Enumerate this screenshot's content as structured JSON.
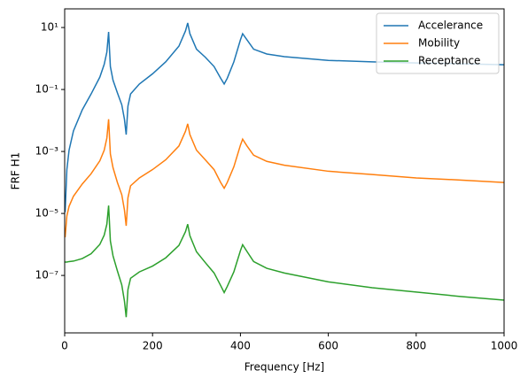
{
  "chart_data": {
    "type": "line",
    "xlabel": "Frequency [Hz]",
    "ylabel": "FRF H1",
    "x": [
      1,
      5,
      10,
      20,
      40,
      60,
      80,
      90,
      96,
      100,
      104,
      110,
      120,
      130,
      136,
      140,
      144,
      150,
      170,
      200,
      230,
      260,
      275,
      280,
      285,
      300,
      320,
      340,
      355,
      363,
      370,
      385,
      400,
      405,
      415,
      430,
      460,
      500,
      600,
      700,
      800,
      900,
      1000
    ],
    "series": [
      {
        "name": "Accelerance",
        "color": "#1f77b4",
        "values": [
          1.1e-05,
          0.00026,
          0.0011,
          0.0046,
          0.022,
          0.071,
          0.25,
          0.65,
          1.6,
          7.2,
          0.55,
          0.2,
          0.078,
          0.032,
          0.011,
          0.0035,
          0.029,
          0.072,
          0.15,
          0.32,
          0.78,
          2.5,
          7.8,
          14,
          6.3,
          2.0,
          1.1,
          0.55,
          0.23,
          0.15,
          0.23,
          0.78,
          4.0,
          6.3,
          4.0,
          2.0,
          1.4,
          1.15,
          0.87,
          0.78,
          0.72,
          0.68,
          0.63
        ]
      },
      {
        "name": "Mobility",
        "color": "#ff7f0e",
        "values": [
          1.7e-06,
          8.3e-06,
          1.7e-05,
          3.6e-05,
          8.9e-05,
          0.00019,
          0.0005,
          0.0011,
          0.0027,
          0.011,
          0.00083,
          0.0003,
          0.0001,
          4e-05,
          1.3e-05,
          4e-06,
          3.2e-05,
          7.8e-05,
          0.00014,
          0.00026,
          0.00054,
          0.0015,
          0.0045,
          0.0078,
          0.0035,
          0.0011,
          0.00054,
          0.00026,
          0.0001,
          6.5e-05,
          0.0001,
          0.00032,
          0.0016,
          0.0025,
          0.0015,
          0.00076,
          0.00048,
          0.00036,
          0.00023,
          0.00018,
          0.00014,
          0.00012,
          0.0001
        ]
      },
      {
        "name": "Receptance",
        "color": "#2ca02c",
        "values": [
          2.7e-07,
          2.7e-07,
          2.8e-07,
          2.9e-07,
          3.5e-07,
          5e-07,
          1e-06,
          2e-06,
          4.5e-06,
          1.8e-05,
          1.3e-06,
          4.3e-07,
          1.4e-07,
          4.9e-08,
          1.5e-08,
          4.5e-09,
          3.5e-08,
          8.1e-08,
          1.3e-07,
          2e-07,
          3.7e-07,
          9.3e-07,
          2.6e-06,
          4.5e-06,
          1.9e-06,
          5.8e-07,
          2.6e-07,
          1.2e-07,
          4.7e-08,
          2.8e-08,
          4.4e-08,
          1.3e-07,
          6.3e-07,
          9.8e-07,
          5.9e-07,
          2.8e-07,
          1.7e-07,
          1.2e-07,
          6.2e-08,
          4e-08,
          2.9e-08,
          2.1e-08,
          1.6e-08
        ]
      }
    ],
    "xlim": [
      0,
      1000
    ],
    "xticks": [
      0,
      200,
      400,
      600,
      800,
      1000
    ],
    "ylim": [
      1.4e-09,
      40
    ],
    "yscale": "log",
    "yticks": [
      {
        "value": 1e-07,
        "label": "10⁻⁷"
      },
      {
        "value": 1e-05,
        "label": "10⁻⁵"
      },
      {
        "value": 0.001,
        "label": "10⁻³"
      },
      {
        "value": 0.1,
        "label": "10⁻¹"
      },
      {
        "value": 10,
        "label": "10¹"
      }
    ],
    "legend": "upper right"
  }
}
